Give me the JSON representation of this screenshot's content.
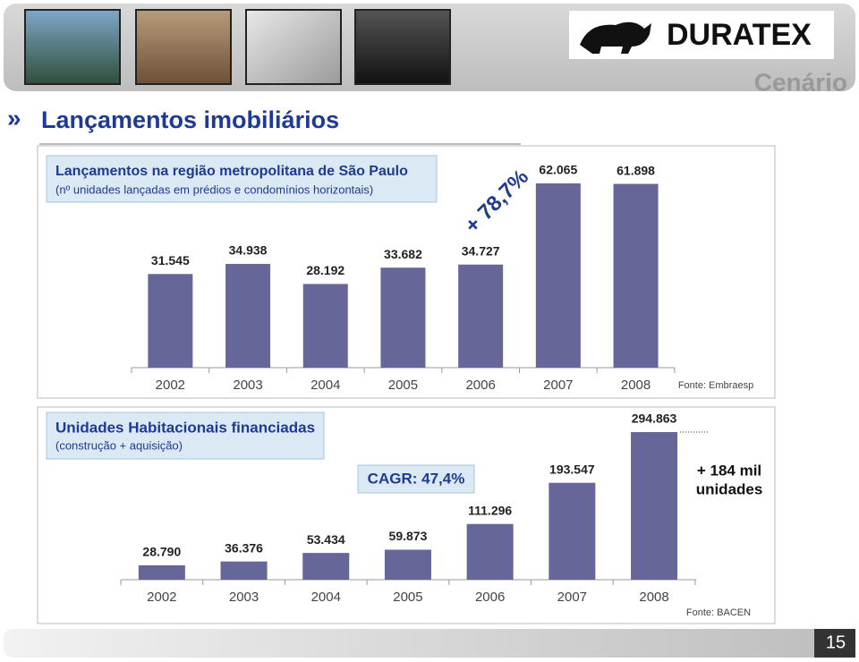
{
  "header": {
    "logo": "DURATEX",
    "section": "Cenário"
  },
  "slide_title": "Lançamentos imobiliários",
  "page_number": "15",
  "chart_data": [
    {
      "type": "bar",
      "title": "Lançamentos na região metropolitana de São Paulo",
      "subtitle": "(nº unidades lançadas em prédios e condomínios horizontais)",
      "categories": [
        "2002",
        "2003",
        "2004",
        "2005",
        "2006",
        "2007",
        "2008"
      ],
      "values": [
        31545,
        34938,
        28192,
        33682,
        34727,
        62065,
        61898
      ],
      "value_labels": [
        "31.545",
        "34.938",
        "28.192",
        "33.682",
        "34.727",
        "62.065",
        "61.898"
      ],
      "color": "#666699",
      "annotations": [
        "+ 78,7%"
      ],
      "source": "Fonte: Embraesp"
    },
    {
      "type": "bar",
      "title": "Unidades Habitacionais financiadas",
      "subtitle": "(construção + aquisição)",
      "categories": [
        "2002",
        "2003",
        "2004",
        "2005",
        "2006",
        "2007",
        "2008"
      ],
      "values": [
        28790,
        36376,
        53434,
        59873,
        111296,
        193547,
        294863
      ],
      "value_labels": [
        "28.790",
        "36.376",
        "53.434",
        "59.873",
        "111.296",
        "193.547",
        "294.863"
      ],
      "color": "#666699",
      "annotations": [
        "CAGR: 47,4%",
        "+ 184 mil",
        "unidades"
      ],
      "source": "Fonte: BACEN"
    }
  ]
}
